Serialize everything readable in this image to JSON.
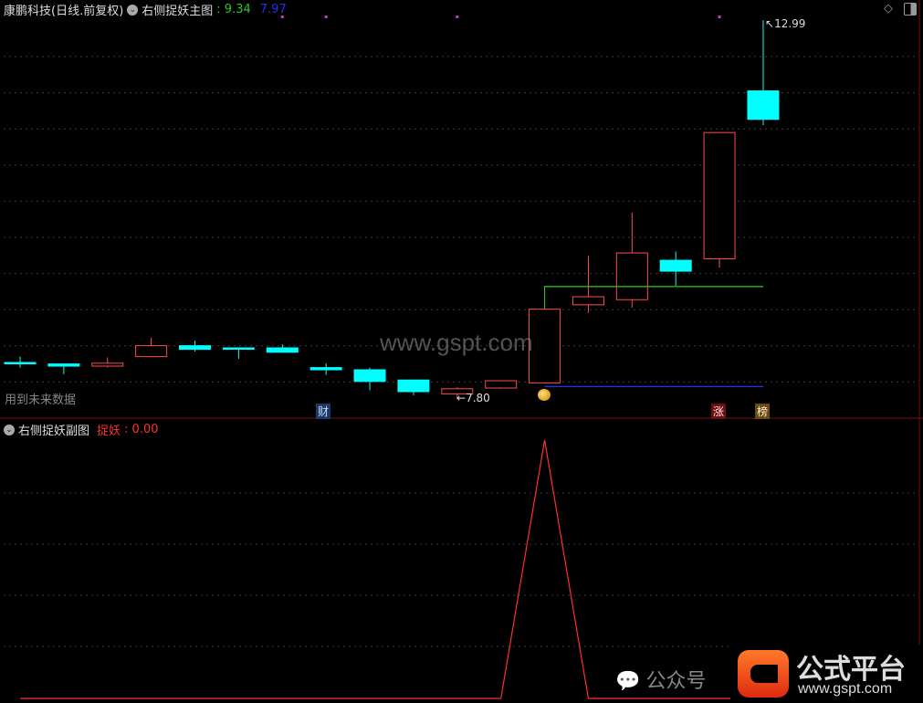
{
  "header": {
    "stock": "康鹏科技(日线.前复权)",
    "indicator": "右侧捉妖主图",
    "values": [
      {
        "text": ": 9.34",
        "color": "#22cc22"
      },
      {
        "text": "7.97",
        "color": "#2233ee"
      }
    ]
  },
  "future_note": "用到未来数据",
  "sub_header": {
    "indicator": "右侧捉妖副图",
    "label": "捉妖",
    "value": ": 0.00"
  },
  "markers": {
    "cai": "财",
    "zhang": "涨",
    "bang": "榜"
  },
  "annotations": {
    "high": "12.99",
    "low": "7.80"
  },
  "watermark": {
    "center": "www.gspt.com",
    "wechat": "公众号",
    "brand": "公式平台",
    "brand_url": "www.gspt.com"
  },
  "colors": {
    "up": "#ff4c4c",
    "down": "#00ffff",
    "support": "#22cc22",
    "bottom": "#2233ee",
    "signal": "#ff3030",
    "dot": "#c040c0"
  },
  "chart_data": [
    {
      "type": "candlestick",
      "title": "右侧捉妖主图",
      "ylim": [
        7.8,
        12.99
      ],
      "candles": [
        {
          "o": 8.3,
          "h": 8.38,
          "l": 8.23,
          "c": 8.29
        },
        {
          "o": 8.28,
          "h": 8.28,
          "l": 8.14,
          "c": 8.25
        },
        {
          "o": 8.25,
          "h": 8.37,
          "l": 8.23,
          "c": 8.29
        },
        {
          "o": 8.38,
          "h": 8.64,
          "l": 8.38,
          "c": 8.53
        },
        {
          "o": 8.53,
          "h": 8.6,
          "l": 8.45,
          "c": 8.48
        },
        {
          "o": 8.5,
          "h": 8.5,
          "l": 8.35,
          "c": 8.49
        },
        {
          "o": 8.5,
          "h": 8.55,
          "l": 8.44,
          "c": 8.44
        },
        {
          "o": 8.23,
          "h": 8.29,
          "l": 8.13,
          "c": 8.2
        },
        {
          "o": 8.2,
          "h": 8.23,
          "l": 7.92,
          "c": 8.04
        },
        {
          "o": 8.06,
          "h": 8.06,
          "l": 7.85,
          "c": 7.9
        },
        {
          "o": 7.87,
          "h": 7.96,
          "l": 7.8,
          "c": 7.94
        },
        {
          "o": 7.95,
          "h": 8.05,
          "l": 7.94,
          "c": 8.05
        },
        {
          "o": 8.02,
          "h": 9.35,
          "l": 8.02,
          "c": 9.03
        },
        {
          "o": 9.09,
          "h": 9.76,
          "l": 8.98,
          "c": 9.2
        },
        {
          "o": 9.16,
          "h": 10.35,
          "l": 9.05,
          "c": 9.8
        },
        {
          "o": 9.7,
          "h": 9.82,
          "l": 9.35,
          "c": 9.55
        },
        {
          "o": 9.72,
          "h": 11.45,
          "l": 9.6,
          "c": 11.45
        },
        {
          "o": 12.02,
          "h": 12.99,
          "l": 11.55,
          "c": 11.63
        }
      ],
      "lines": [
        {
          "name": "9.34",
          "value": 9.34,
          "from": 12,
          "to": 17,
          "color": "#22cc22"
        },
        {
          "name": "7.97",
          "value": 7.97,
          "from": 12,
          "to": 17,
          "color": "#2233ee"
        }
      ],
      "top_dots": [
        6,
        7,
        10,
        16
      ],
      "grid": true
    },
    {
      "type": "line",
      "title": "右侧捉妖副图",
      "series": [
        {
          "name": "捉妖",
          "values": [
            0,
            0,
            0,
            0,
            0,
            0,
            0,
            0,
            0,
            0,
            0,
            0,
            1,
            0,
            0,
            0,
            0,
            0
          ]
        }
      ],
      "ylim": [
        0,
        1
      ],
      "grid": true
    }
  ]
}
